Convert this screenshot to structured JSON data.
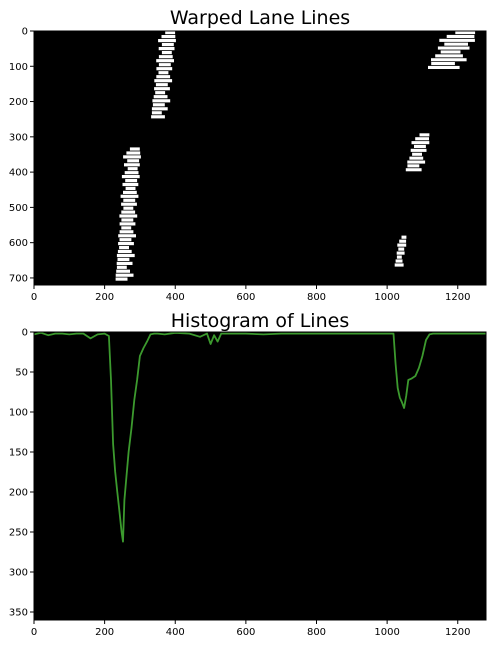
{
  "chart_data": [
    {
      "type": "heatmap",
      "title": "Warped Lane Lines",
      "xlim": [
        0,
        1280
      ],
      "ylim": [
        720,
        0
      ],
      "x_ticks": [
        0,
        200,
        400,
        600,
        800,
        1000,
        1200
      ],
      "y_ticks": [
        0,
        100,
        200,
        300,
        400,
        500,
        600,
        700
      ],
      "background_color": "#000000",
      "foreground_color": "#ffffff",
      "lane_marks": [
        {
          "name": "left-lane-upper",
          "x_range": [
            330,
            410
          ],
          "y_range": [
            0,
            250
          ]
        },
        {
          "name": "left-lane-lower",
          "x_range": [
            230,
            310
          ],
          "y_range": [
            330,
            710
          ]
        },
        {
          "name": "right-lane-upper",
          "x_range": [
            1110,
            1270
          ],
          "y_range": [
            0,
            110
          ]
        },
        {
          "name": "right-lane-middle",
          "x_range": [
            1050,
            1130
          ],
          "y_range": [
            290,
            400
          ]
        },
        {
          "name": "right-lane-lower",
          "x_range": [
            1020,
            1060
          ],
          "y_range": [
            580,
            670
          ]
        }
      ]
    },
    {
      "type": "line",
      "title": "Histogram of Lines",
      "xlim": [
        0,
        1280
      ],
      "ylim": [
        360,
        0
      ],
      "x_ticks": [
        0,
        200,
        400,
        600,
        800,
        1000,
        1200
      ],
      "y_ticks": [
        0,
        50,
        100,
        150,
        200,
        250,
        300,
        350
      ],
      "background_color": "#000000",
      "line_color": "#3c9a2e",
      "series": [
        {
          "x": [
            0,
            20,
            40,
            60,
            80,
            100,
            120,
            140,
            160,
            180,
            200,
            212,
            218,
            224,
            230,
            236,
            242,
            248,
            252,
            256,
            262,
            268,
            276,
            284,
            292,
            300,
            310,
            320,
            330,
            340,
            350,
            370,
            400,
            440,
            470,
            490,
            500,
            510,
            520,
            530,
            560,
            600,
            650,
            700,
            750,
            800,
            850,
            900,
            950,
            1000,
            1018,
            1024,
            1030,
            1036,
            1042,
            1048,
            1054,
            1060,
            1070,
            1080,
            1090,
            1100,
            1110,
            1120,
            1130,
            1150,
            1200,
            1250,
            1280
          ],
          "y": [
            3,
            1,
            4,
            2,
            2,
            3,
            2,
            2,
            8,
            3,
            2,
            5,
            60,
            140,
            175,
            200,
            225,
            250,
            262,
            210,
            180,
            150,
            120,
            85,
            60,
            30,
            20,
            12,
            3,
            2,
            2,
            3,
            1,
            2,
            6,
            2,
            15,
            4,
            12,
            2,
            2,
            2,
            3,
            2,
            2,
            2,
            2,
            2,
            2,
            2,
            2,
            40,
            70,
            82,
            88,
            95,
            80,
            60,
            58,
            55,
            45,
            30,
            10,
            3,
            2,
            2,
            2,
            2,
            2
          ]
        }
      ]
    }
  ]
}
